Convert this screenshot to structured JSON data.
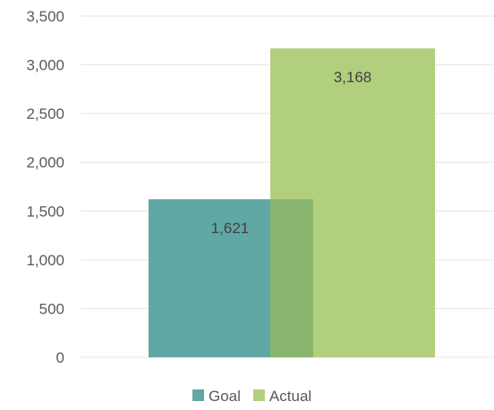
{
  "chart_data": {
    "type": "bar",
    "categories": [
      ""
    ],
    "series": [
      {
        "name": "Goal",
        "values": [
          1621
        ],
        "color": "#5fa8a6",
        "label": "1,621"
      },
      {
        "name": "Actual",
        "values": [
          3168
        ],
        "color": "#b2cf7e",
        "label": "3,168"
      }
    ],
    "overlap_color": "#8ab56e",
    "ylim": [
      0,
      3500
    ],
    "yticks": [
      0,
      500,
      1000,
      1500,
      2000,
      2500,
      3000,
      3500
    ],
    "ytick_labels": [
      "0",
      "500",
      "1,000",
      "1,500",
      "2,000",
      "2,500",
      "3,000",
      "3,500"
    ],
    "grid": true,
    "grid_color": "#e6e6e6",
    "legend_position": "bottom",
    "title": "",
    "xlabel": "",
    "ylabel": ""
  }
}
